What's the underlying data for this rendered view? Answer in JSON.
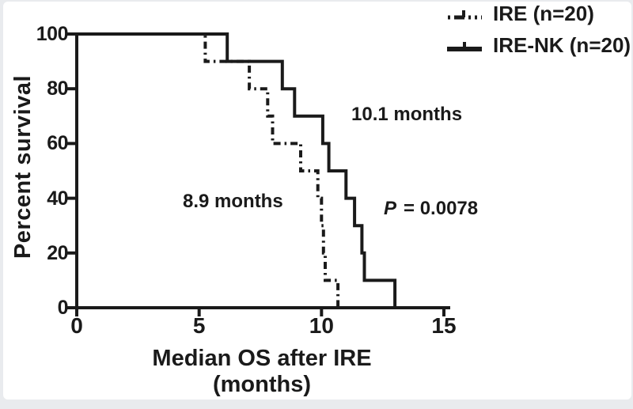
{
  "chart_data": {
    "type": "line",
    "subtype": "kaplan-meier-step-curves",
    "title": "",
    "ylabel": "Percent survival",
    "xlabel": [
      "Median OS after IRE",
      "(months)"
    ],
    "xlim": [
      0,
      15
    ],
    "ylim": [
      0,
      100
    ],
    "xticks": [
      "0",
      "5",
      "10",
      "15"
    ],
    "yticks": [
      "100",
      "80",
      "60",
      "40",
      "20",
      "0"
    ],
    "grid": false,
    "legend": {
      "position": "top-right",
      "items": [
        {
          "label": "IRE (n=20)",
          "line_style": "dash-dot"
        },
        {
          "label": "IRE-NK (n=20)",
          "line_style": "solid"
        }
      ]
    },
    "series": [
      {
        "name": "IRE (n=20)",
        "style": "dash-dot",
        "steps": [
          [
            0,
            100
          ],
          [
            5.25,
            100
          ],
          [
            5.25,
            90
          ],
          [
            7.05,
            90
          ],
          [
            7.05,
            80
          ],
          [
            7.8,
            80
          ],
          [
            7.8,
            70
          ],
          [
            8.0,
            70
          ],
          [
            8.0,
            60
          ],
          [
            9.15,
            60
          ],
          [
            9.15,
            50
          ],
          [
            9.85,
            50
          ],
          [
            9.85,
            40
          ],
          [
            10.0,
            40
          ],
          [
            10.0,
            30
          ],
          [
            10.08,
            30
          ],
          [
            10.08,
            20
          ],
          [
            10.15,
            20
          ],
          [
            10.15,
            10
          ],
          [
            10.67,
            10
          ],
          [
            10.67,
            0
          ]
        ]
      },
      {
        "name": "IRE-NK (n=20)",
        "style": "solid",
        "steps": [
          [
            0,
            100
          ],
          [
            6.15,
            100
          ],
          [
            6.15,
            90
          ],
          [
            8.4,
            90
          ],
          [
            8.4,
            80
          ],
          [
            8.9,
            80
          ],
          [
            8.9,
            70
          ],
          [
            10.05,
            70
          ],
          [
            10.05,
            60
          ],
          [
            10.3,
            60
          ],
          [
            10.3,
            50
          ],
          [
            11.0,
            50
          ],
          [
            11.0,
            40
          ],
          [
            11.35,
            40
          ],
          [
            11.35,
            30
          ],
          [
            11.65,
            30
          ],
          [
            11.65,
            20
          ],
          [
            11.75,
            20
          ],
          [
            11.75,
            10
          ],
          [
            13.0,
            10
          ],
          [
            13.0,
            0
          ]
        ]
      }
    ],
    "annotations": [
      {
        "id": "median-ire-nk",
        "text": "10.1 months"
      },
      {
        "id": "median-ire",
        "text": "8.9 months"
      },
      {
        "id": "p-value",
        "text": "P = 0.0078",
        "text_italic": "P",
        "text_rest": "= 0.0078"
      }
    ],
    "colors": {
      "ink": "#1a1a1a",
      "background": "#ffffff",
      "frame": "#e9ebee"
    }
  }
}
